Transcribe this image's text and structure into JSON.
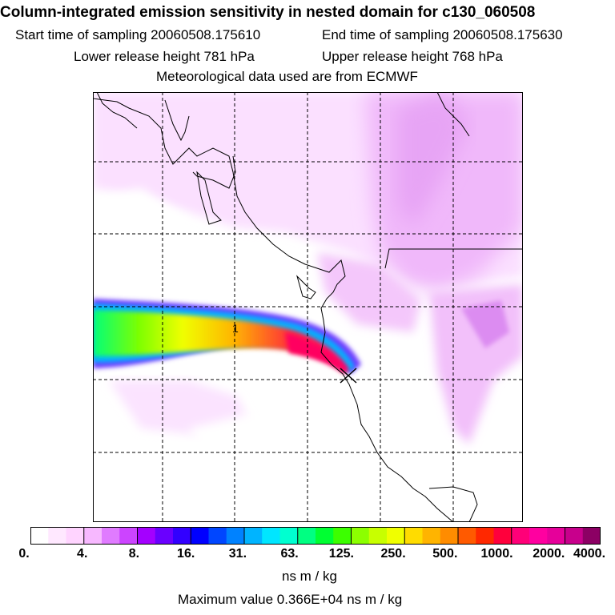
{
  "header": {
    "title": "Column-integrated emission sensitivity in nested domain for c130_060508",
    "start_time": "Start time of sampling 20060508.175610",
    "end_time": "End time of sampling 20060508.175630",
    "lower_release": "Lower release height  781 hPa",
    "upper_release": "Upper release height  768 hPa",
    "met_data": "Meteorological data used are from ECMWF"
  },
  "map": {
    "release_marker_label": "1",
    "release_marker_symbol": "X"
  },
  "colorbar": {
    "tick_labels": [
      "0.",
      "4.",
      "8.",
      "16.",
      "31.",
      "63.",
      "125.",
      "250.",
      "500.",
      "1000.",
      "2000.",
      "4000."
    ],
    "units": "ns m / kg",
    "colors": [
      "#ffffff",
      "#ffe8ff",
      "#ffd4ff",
      "#f7b8ff",
      "#e07bff",
      "#cc44ff",
      "#a400ff",
      "#6a00ff",
      "#3200ff",
      "#0000ff",
      "#0046ff",
      "#0082ff",
      "#00b4ff",
      "#00e6ff",
      "#00ffd0",
      "#00ff82",
      "#00ff32",
      "#3cff00",
      "#8cff00",
      "#c8ff00",
      "#f0ff00",
      "#ffdc00",
      "#ffb400",
      "#ff8c00",
      "#ff5a00",
      "#ff2800",
      "#ff003c",
      "#ff0078",
      "#ff00a0",
      "#e6009a",
      "#c8008c",
      "#8c0064"
    ]
  },
  "footer": {
    "max_value": "Maximum value  0.366E+04 ns m / kg"
  }
}
